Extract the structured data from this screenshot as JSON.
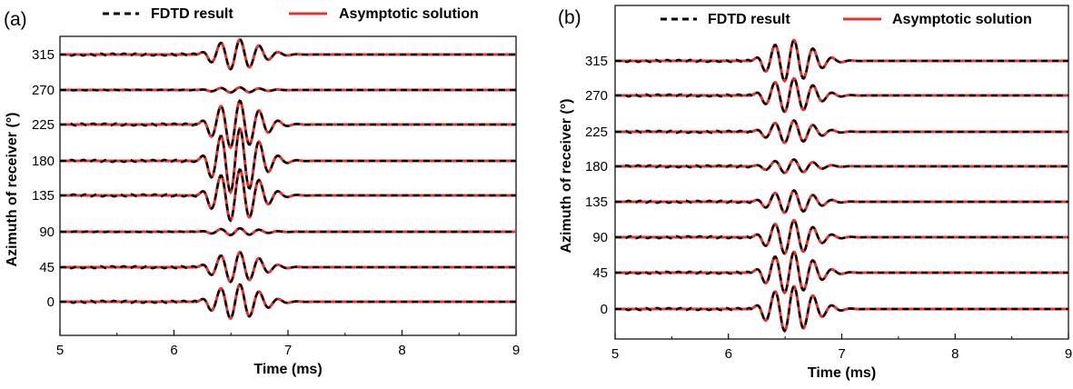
{
  "colors": {
    "fdtd": "#000000",
    "asymptotic": "#e8322e",
    "axis": "#000000"
  },
  "chart_data": [
    {
      "type": "line",
      "panel_label": "(a)",
      "xlabel": "Time (ms)",
      "ylabel": "Azimuth of receiver (°)",
      "xlim": [
        5,
        9
      ],
      "xticks": [
        "5",
        "6",
        "7",
        "8",
        "9"
      ],
      "yticks": [
        "0",
        "45",
        "90",
        "135",
        "180",
        "225",
        "270",
        "315"
      ],
      "legend": [
        {
          "name": "FDTD result",
          "style": "dashed"
        },
        {
          "name": "Asymptotic solution",
          "style": "solid"
        }
      ],
      "legend_position": "top",
      "series": [
        {
          "name": "FDTD result",
          "style": "dashed",
          "color": "#000000"
        },
        {
          "name": "Asymptotic solution",
          "style": "solid",
          "color": "#e8322e"
        }
      ],
      "traces": [
        {
          "azimuth": 0,
          "amplitude": 0.4,
          "onset_ms": 6.2,
          "peak_ms": 6.55
        },
        {
          "azimuth": 45,
          "amplitude": 0.35,
          "onset_ms": 6.2,
          "peak_ms": 6.55
        },
        {
          "azimuth": 90,
          "amplitude": 0.08,
          "onset_ms": 6.2,
          "peak_ms": 6.55
        },
        {
          "azimuth": 135,
          "amplitude": 0.6,
          "onset_ms": 6.2,
          "peak_ms": 6.55
        },
        {
          "azimuth": 180,
          "amplitude": 0.75,
          "onset_ms": 6.2,
          "peak_ms": 6.55
        },
        {
          "azimuth": 225,
          "amplitude": 0.55,
          "onset_ms": 6.2,
          "peak_ms": 6.55
        },
        {
          "azimuth": 270,
          "amplitude": 0.06,
          "onset_ms": 6.2,
          "peak_ms": 6.55
        },
        {
          "azimuth": 315,
          "amplitude": 0.35,
          "onset_ms": 6.2,
          "peak_ms": 6.55
        }
      ]
    },
    {
      "type": "line",
      "panel_label": "(b)",
      "xlabel": "Time (ms)",
      "ylabel": "Azimuth of receiver (°)",
      "xlim": [
        5,
        9
      ],
      "xticks": [
        "5",
        "6",
        "7",
        "8",
        "9"
      ],
      "yticks": [
        "0",
        "45",
        "90",
        "135",
        "180",
        "225",
        "270",
        "315"
      ],
      "legend": [
        {
          "name": "FDTD result",
          "style": "dashed"
        },
        {
          "name": "Asymptotic solution",
          "style": "solid"
        }
      ],
      "legend_position": "top",
      "series": [
        {
          "name": "FDTD result",
          "style": "dashed",
          "color": "#000000"
        },
        {
          "name": "Asymptotic solution",
          "style": "solid",
          "color": "#e8322e"
        }
      ],
      "traces": [
        {
          "azimuth": 0,
          "amplitude": 0.6,
          "onset_ms": 6.2,
          "peak_ms": 6.55
        },
        {
          "azimuth": 45,
          "amplitude": 0.55,
          "onset_ms": 6.2,
          "peak_ms": 6.55
        },
        {
          "azimuth": 90,
          "amplitude": 0.45,
          "onset_ms": 6.2,
          "peak_ms": 6.55
        },
        {
          "azimuth": 135,
          "amplitude": 0.3,
          "onset_ms": 6.2,
          "peak_ms": 6.55
        },
        {
          "azimuth": 180,
          "amplitude": 0.18,
          "onset_ms": 6.2,
          "peak_ms": 6.55
        },
        {
          "azimuth": 225,
          "amplitude": 0.3,
          "onset_ms": 6.2,
          "peak_ms": 6.55
        },
        {
          "azimuth": 270,
          "amplitude": 0.45,
          "onset_ms": 6.2,
          "peak_ms": 6.55
        },
        {
          "azimuth": 315,
          "amplitude": 0.55,
          "onset_ms": 6.2,
          "peak_ms": 6.55
        }
      ]
    }
  ]
}
